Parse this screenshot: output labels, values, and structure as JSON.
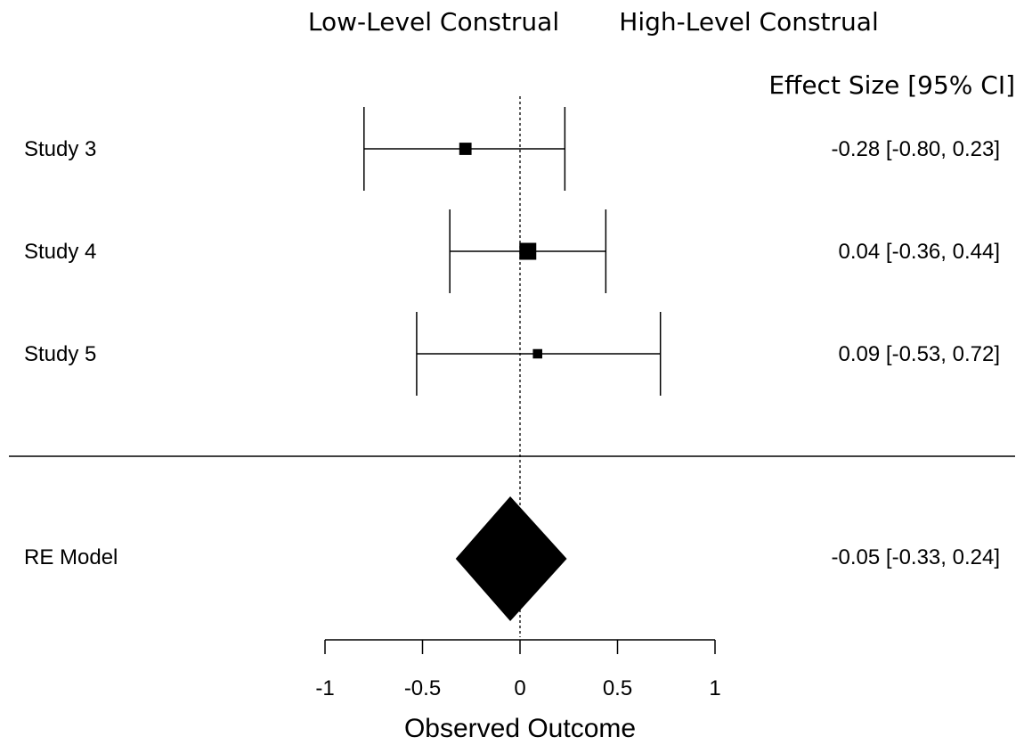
{
  "chart_data": {
    "type": "forest",
    "header_left": "Low-Level Construal",
    "header_right": "High-Level Construal",
    "column_header": "Effect Size [95% CI]",
    "xlabel": "Observed Outcome",
    "xlim": [
      -1,
      1
    ],
    "x_ticks": [
      -1,
      -0.5,
      0,
      0.5,
      1
    ],
    "x_tick_labels": [
      "-1",
      "-0.5",
      "0",
      "0.5",
      "1"
    ],
    "reference_line": 0,
    "studies": [
      {
        "label": "Study 3",
        "estimate": -0.28,
        "ci_low": -0.8,
        "ci_high": 0.23,
        "weight": 0.6,
        "text": "-0.28 [-0.80, 0.23]"
      },
      {
        "label": "Study 4",
        "estimate": 0.04,
        "ci_low": -0.36,
        "ci_high": 0.44,
        "weight": 1.0,
        "text": "0.04 [-0.36, 0.44]"
      },
      {
        "label": "Study 5",
        "estimate": 0.09,
        "ci_low": -0.53,
        "ci_high": 0.72,
        "weight": 0.35,
        "text": "0.09 [-0.53, 0.72]"
      }
    ],
    "summary": {
      "label": "RE Model",
      "estimate": -0.05,
      "ci_low": -0.33,
      "ci_high": 0.24,
      "text": "-0.05 [-0.33, 0.24]"
    }
  }
}
